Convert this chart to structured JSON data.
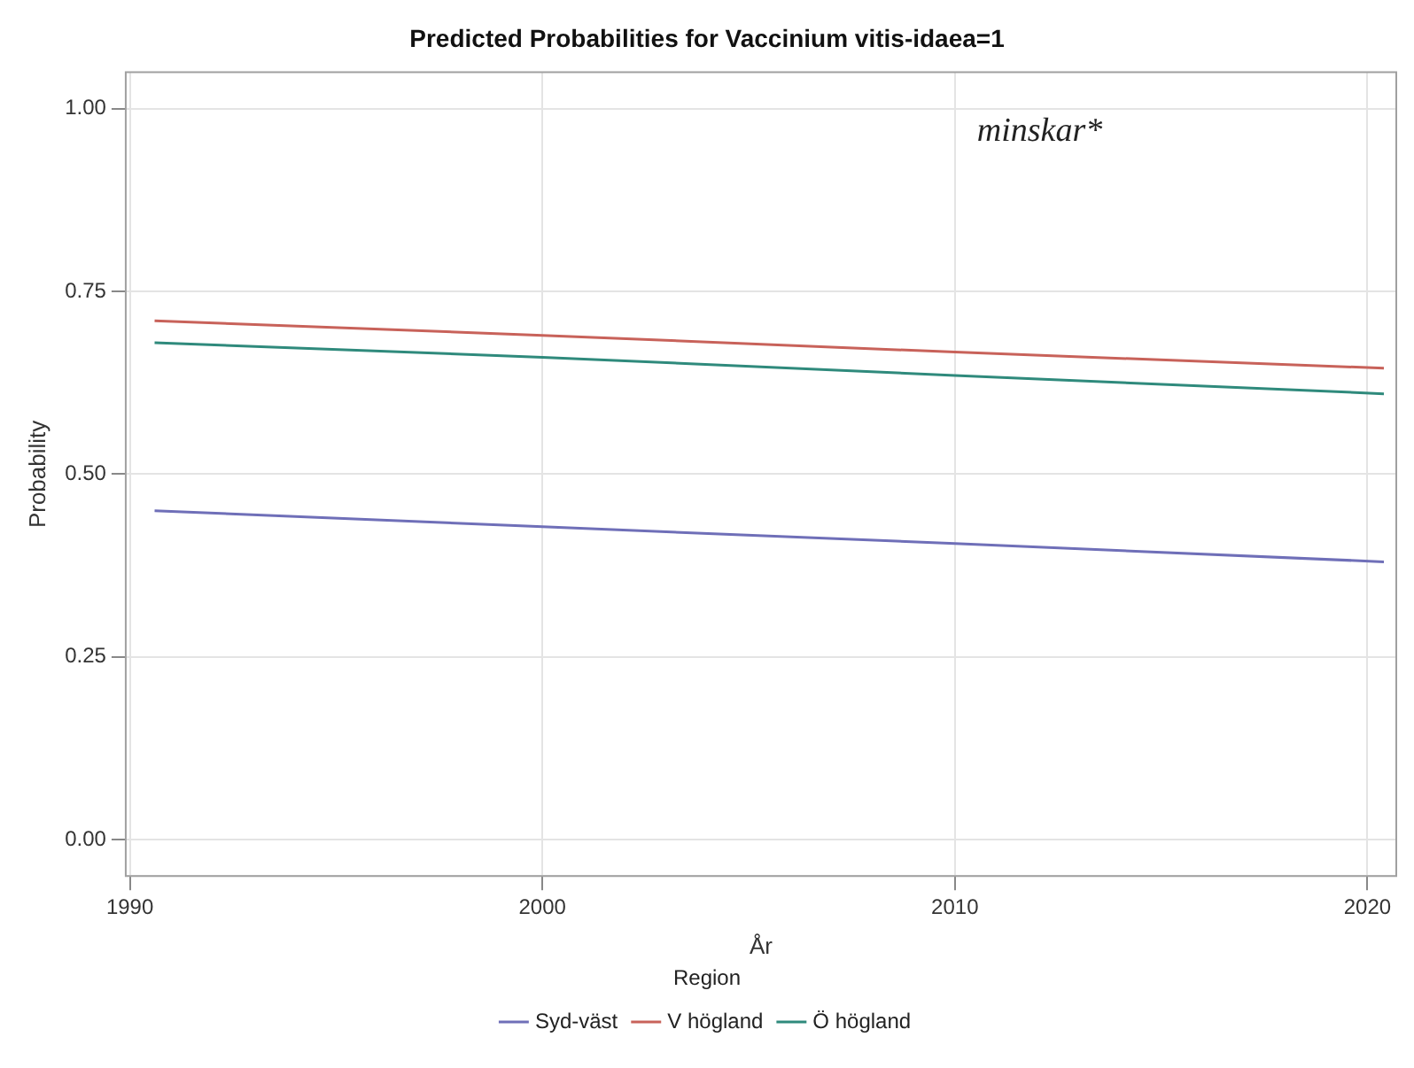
{
  "chart_data": {
    "type": "line",
    "title": "Predicted Probabilities for Vaccinium vitis-idaea=1",
    "xlabel": "År",
    "ylabel": "Probability",
    "legend_title": "Region",
    "legend": "bottom",
    "grid": true,
    "marker": "none",
    "line_style": "solid",
    "x": [
      1990.6,
      2000,
      2010,
      2020.4
    ],
    "series": [
      {
        "name": "Syd-väst",
        "color": "#6f6fb8",
        "values": [
          0.45,
          0.428,
          0.405,
          0.38
        ]
      },
      {
        "name": "V högland",
        "color": "#c8625a",
        "values": [
          0.71,
          0.69,
          0.667,
          0.645
        ]
      },
      {
        "name": "Ö högland",
        "color": "#2f8a7c",
        "values": [
          0.68,
          0.66,
          0.635,
          0.61
        ]
      }
    ],
    "xlim": [
      1989.9,
      2020.7
    ],
    "xticks": [
      1990,
      2000,
      2010,
      2020
    ],
    "ylim": [
      -0.05,
      1.05
    ],
    "yticks": [
      {
        "value": 0,
        "label": "0.00"
      },
      {
        "value": 0.25,
        "label": "0.25"
      },
      {
        "value": 0.5,
        "label": "0.50"
      },
      {
        "value": 0.75,
        "label": "0.75"
      },
      {
        "value": 1,
        "label": "1.00"
      }
    ],
    "annotations": [
      "minskar*"
    ]
  }
}
